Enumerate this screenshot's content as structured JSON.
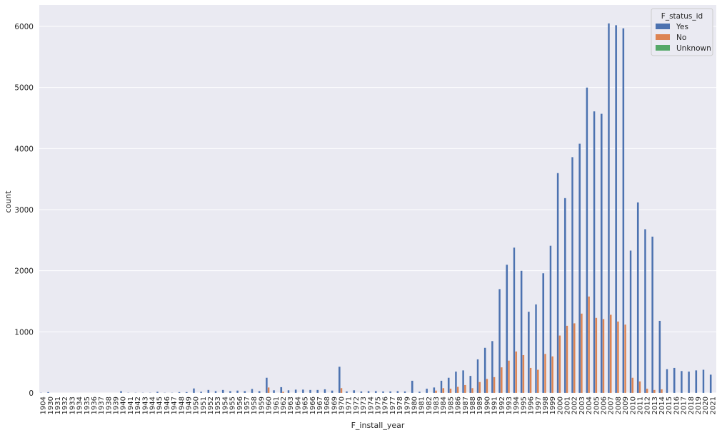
{
  "chart_data": {
    "type": "bar",
    "xlabel": "F_install_year",
    "ylabel": "count",
    "ylim": [
      0,
      6350
    ],
    "yticks": [
      0,
      1000,
      2000,
      3000,
      4000,
      5000,
      6000
    ],
    "grid": true,
    "legend_position": "top-right",
    "legend_title": "F_status_id",
    "categories": [
      "1904",
      "1930",
      "1931",
      "1932",
      "1933",
      "1934",
      "1935",
      "1936",
      "1937",
      "1938",
      "1939",
      "1940",
      "1941",
      "1942",
      "1943",
      "1944",
      "1945",
      "1946",
      "1947",
      "1948",
      "1949",
      "1950",
      "1951",
      "1952",
      "1953",
      "1954",
      "1955",
      "1956",
      "1957",
      "1958",
      "1959",
      "1960",
      "1961",
      "1962",
      "1963",
      "1964",
      "1965",
      "1966",
      "1967",
      "1968",
      "1969",
      "1970",
      "1971",
      "1972",
      "1973",
      "1974",
      "1975",
      "1976",
      "1977",
      "1978",
      "1979",
      "1980",
      "1981",
      "1982",
      "1983",
      "1984",
      "1985",
      "1986",
      "1987",
      "1988",
      "1989",
      "1990",
      "1991",
      "1992",
      "1993",
      "1994",
      "1995",
      "1996",
      "1997",
      "1998",
      "1999",
      "2000",
      "2001",
      "2002",
      "2003",
      "2004",
      "2005",
      "2006",
      "2007",
      "2008",
      "2009",
      "2010",
      "2011",
      "2012",
      "2013",
      "2014",
      "2015",
      "2016",
      "2017",
      "2018",
      "2019",
      "2020",
      "2021"
    ],
    "series": [
      {
        "name": "Yes",
        "color": "#4c72b0",
        "values": [
          5,
          15,
          0,
          0,
          0,
          0,
          0,
          0,
          0,
          0,
          0,
          30,
          5,
          5,
          5,
          5,
          20,
          5,
          5,
          15,
          15,
          75,
          20,
          50,
          30,
          50,
          30,
          40,
          30,
          65,
          30,
          250,
          45,
          95,
          45,
          55,
          55,
          50,
          50,
          60,
          40,
          430,
          25,
          45,
          25,
          30,
          30,
          25,
          25,
          30,
          25,
          200,
          20,
          70,
          90,
          200,
          250,
          350,
          370,
          280,
          550,
          740,
          850,
          1700,
          2100,
          2380,
          2000,
          1330,
          1450,
          1960,
          2410,
          3600,
          3190,
          3860,
          4080,
          5000,
          4610,
          4570,
          6050,
          6020,
          5970,
          2330,
          3120,
          2680,
          2560,
          1180,
          390,
          410,
          360,
          350,
          370,
          380,
          300
        ]
      },
      {
        "name": "No",
        "color": "#dd8452",
        "values": [
          0,
          0,
          0,
          0,
          0,
          0,
          0,
          0,
          0,
          0,
          0,
          0,
          0,
          0,
          0,
          0,
          0,
          0,
          0,
          0,
          0,
          0,
          0,
          0,
          0,
          0,
          0,
          0,
          0,
          0,
          0,
          90,
          0,
          20,
          0,
          0,
          0,
          0,
          0,
          0,
          0,
          80,
          0,
          0,
          0,
          0,
          0,
          0,
          0,
          0,
          0,
          0,
          0,
          0,
          40,
          80,
          70,
          100,
          130,
          80,
          180,
          230,
          260,
          420,
          530,
          680,
          620,
          410,
          380,
          640,
          600,
          940,
          1100,
          1140,
          1300,
          1580,
          1230,
          1210,
          1280,
          1170,
          1120,
          250,
          190,
          70,
          50,
          60,
          0,
          0,
          0,
          0,
          0,
          0,
          0
        ]
      },
      {
        "name": "Unknown",
        "color": "#55a868",
        "values": [
          0,
          0,
          0,
          0,
          0,
          0,
          0,
          0,
          0,
          0,
          0,
          0,
          0,
          0,
          0,
          0,
          0,
          0,
          0,
          0,
          0,
          0,
          0,
          0,
          0,
          0,
          0,
          0,
          0,
          0,
          0,
          0,
          0,
          0,
          0,
          0,
          0,
          0,
          0,
          0,
          0,
          0,
          0,
          0,
          0,
          0,
          0,
          0,
          0,
          0,
          0,
          0,
          0,
          0,
          0,
          0,
          0,
          0,
          0,
          0,
          0,
          0,
          0,
          0,
          0,
          0,
          0,
          0,
          0,
          0,
          0,
          0,
          0,
          0,
          0,
          0,
          0,
          0,
          0,
          0,
          0,
          0,
          0,
          0,
          0,
          0,
          0,
          0,
          0,
          0,
          0,
          0,
          0
        ]
      }
    ]
  }
}
